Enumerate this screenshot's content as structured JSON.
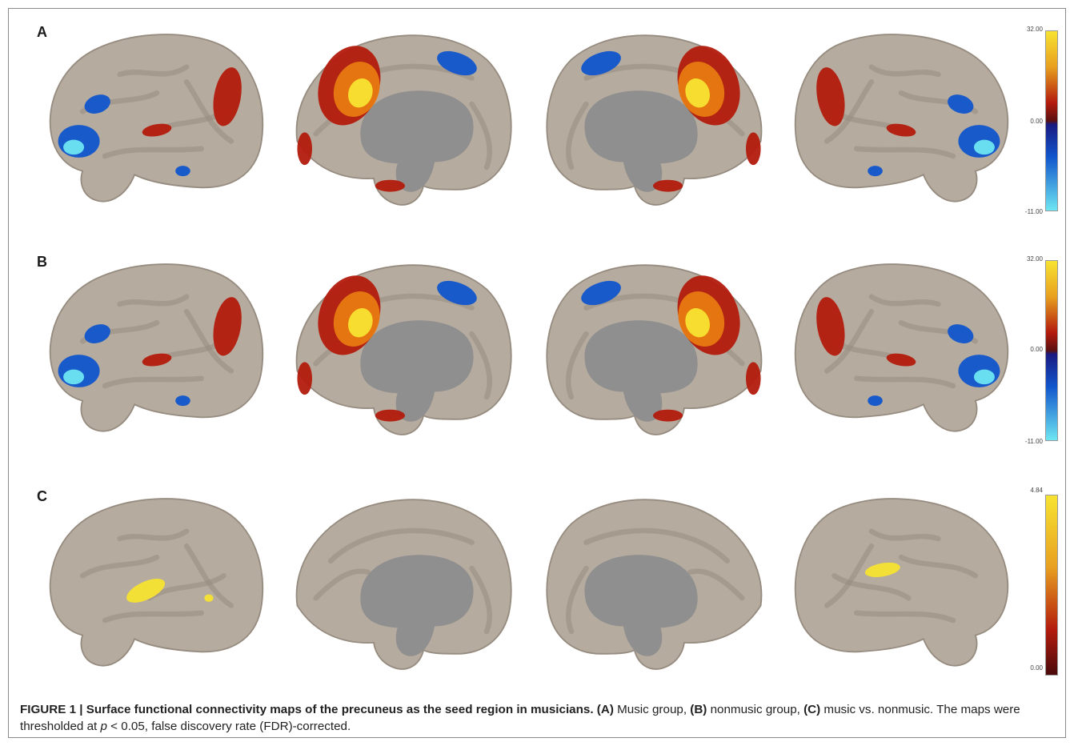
{
  "panels": [
    {
      "letter": "A",
      "colorbar": {
        "max": "32.00",
        "mid": "0.00",
        "min": "-11.00",
        "scale": "diverging"
      },
      "views": [
        "left-lateral",
        "left-medial",
        "right-medial",
        "right-lateral"
      ]
    },
    {
      "letter": "B",
      "colorbar": {
        "max": "32.00",
        "mid": "0.00",
        "min": "-11.00",
        "scale": "diverging"
      },
      "views": [
        "left-lateral",
        "left-medial",
        "right-medial",
        "right-lateral"
      ]
    },
    {
      "letter": "C",
      "colorbar": {
        "max": "4.84",
        "min": "0.00",
        "scale": "sequential"
      },
      "views": [
        "left-lateral",
        "left-medial",
        "right-medial",
        "right-lateral"
      ]
    }
  ],
  "caption": {
    "figure_label": "FIGURE 1 | Surface functional connectivity maps of the precuneus as the seed region in musicians.",
    "a_label": "(A)",
    "a_text": " Music group, ",
    "b_label": "(B)",
    "b_text": " nonmusic group, ",
    "c_label": "(C)",
    "c_text": " music vs. nonmusic. The maps were thresholded at ",
    "p_symbol": "p",
    "threshold_text": " < 0.05, false discovery rate (FDR)-corrected."
  },
  "colors": {
    "cortex": "#b6ab9f",
    "cortex_dark": "#978c80",
    "medial_wall": "#8f8f8f",
    "positive_low": "#b31b0d",
    "positive_high": "#f7e332",
    "negative_low": "#1155cc",
    "negative_high": "#6ee6f2"
  }
}
